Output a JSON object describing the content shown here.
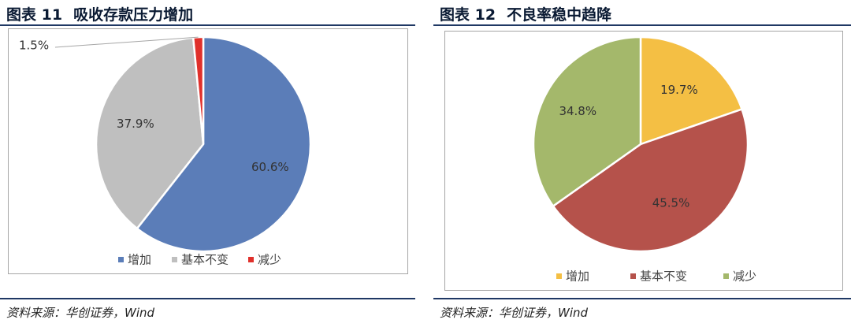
{
  "charts": [
    {
      "title_num": "图表 11",
      "title": "吸收存款压力增加",
      "source": "资料来源：华创证券，Wind"
    },
    {
      "title_num": "图表 12",
      "title": "不良率稳中趋降",
      "source": "资料来源：华创证券，Wind"
    }
  ],
  "chart_data": [
    {
      "type": "pie",
      "title": "吸收存款压力增加",
      "categories": [
        "增加",
        "基本不变",
        "减少"
      ],
      "values": [
        60.6,
        37.9,
        1.5
      ],
      "labels": [
        "60.6%",
        "37.9%",
        "1.5%"
      ],
      "colors": [
        "#5b7db8",
        "#bfbfbf",
        "#e0302b"
      ],
      "legend": "bottom"
    },
    {
      "type": "pie",
      "title": "不良率稳中趋降",
      "categories": [
        "增加",
        "基本不变",
        "减少"
      ],
      "values": [
        19.7,
        45.5,
        34.8
      ],
      "labels": [
        "19.7%",
        "45.5%",
        "34.8%"
      ],
      "colors": [
        "#f4bf44",
        "#b5524b",
        "#a4b86b"
      ],
      "legend": "bottom"
    }
  ]
}
